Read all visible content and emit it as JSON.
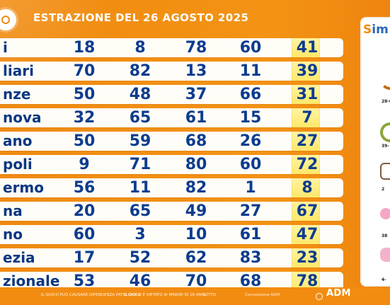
{
  "header": {
    "title": "ESTRAZIONE DEL 26 AGOSTO 2025"
  },
  "results": [
    {
      "city": "i",
      "numbers": [
        18,
        8,
        78,
        60,
        41
      ]
    },
    {
      "city": "liari",
      "numbers": [
        70,
        82,
        13,
        11,
        39
      ]
    },
    {
      "city": "nze",
      "numbers": [
        50,
        48,
        37,
        66,
        31
      ]
    },
    {
      "city": "nova",
      "numbers": [
        32,
        65,
        61,
        15,
        7
      ]
    },
    {
      "city": "ano",
      "numbers": [
        50,
        59,
        68,
        26,
        27
      ]
    },
    {
      "city": "poli",
      "numbers": [
        9,
        71,
        80,
        60,
        72
      ]
    },
    {
      "city": "ermo",
      "numbers": [
        56,
        11,
        82,
        1,
        8
      ]
    },
    {
      "city": "na",
      "numbers": [
        20,
        65,
        49,
        27,
        67
      ]
    },
    {
      "city": "no",
      "numbers": [
        60,
        3,
        10,
        61,
        47
      ]
    },
    {
      "city": "ezia",
      "numbers": [
        17,
        52,
        62,
        83,
        23
      ]
    },
    {
      "city": "zionale",
      "numbers": [
        53,
        46,
        70,
        68,
        78
      ]
    }
  ],
  "side_panel": {
    "brand_start": "S",
    "brand_end": "im",
    "items": [
      {
        "label": "28-0",
        "icon": "moon-icon"
      },
      {
        "label": "39-",
        "icon": "leaf-icon"
      },
      {
        "label": "2",
        "icon": "box-icon"
      },
      {
        "label": "38",
        "icon": "pig-icon"
      },
      {
        "label": "4-",
        "icon": "pig-face-icon"
      }
    ]
  },
  "footer": {
    "text_1": "IL GIOCO PUÒ CAUSARE DIPENDENZA PATOLOGICA",
    "text_2": "IL GIOCO È VIETATO AI MINORI DI 18 ANNI",
    "text_3": "LOTTO",
    "text_4": "Concessione ADM",
    "logo": "ADM"
  },
  "colors": {
    "background": "#f28c11",
    "number_blue": "#0d3c8f",
    "highlight": "#ffe86a",
    "card": "#fffdf7"
  }
}
